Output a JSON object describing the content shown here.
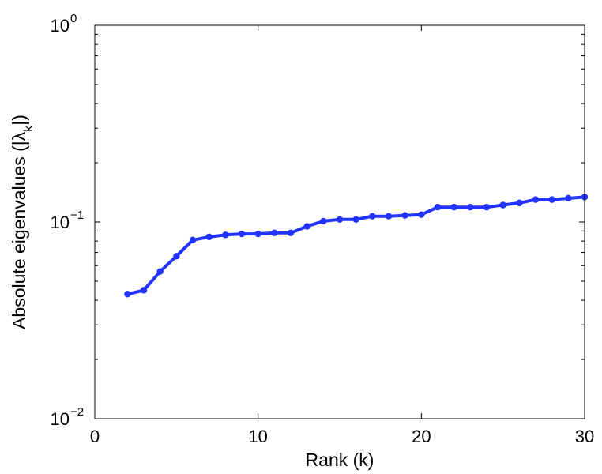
{
  "chart_data": {
    "type": "line",
    "title": "",
    "xlabel": "Rank (k)",
    "ylabel_parts": {
      "main": "Absolute eigenvalues (|λ",
      "sub": "k",
      "end": "|)"
    },
    "xlim": [
      0,
      30
    ],
    "ylim": [
      0.01,
      1
    ],
    "yscale": "log",
    "grid": false,
    "x_ticks": [
      {
        "value": 0,
        "label": "0"
      },
      {
        "value": 10,
        "label": "10"
      },
      {
        "value": 20,
        "label": "20"
      },
      {
        "value": 30,
        "label": "30"
      }
    ],
    "y_ticks": [
      {
        "value": 0.01,
        "base": "10",
        "exp": "−2"
      },
      {
        "value": 0.1,
        "base": "10",
        "exp": "−1"
      },
      {
        "value": 1,
        "base": "10",
        "exp": "0"
      }
    ],
    "series": [
      {
        "color": "#2233ff",
        "marker": "circle",
        "x": [
          2,
          3,
          4,
          5,
          6,
          7,
          8,
          9,
          10,
          11,
          12,
          13,
          14,
          15,
          16,
          17,
          18,
          19,
          20,
          21,
          22,
          23,
          24,
          25,
          26,
          27,
          28,
          29,
          30
        ],
        "y": [
          0.043,
          0.045,
          0.056,
          0.067,
          0.081,
          0.084,
          0.086,
          0.087,
          0.087,
          0.088,
          0.088,
          0.095,
          0.101,
          0.103,
          0.103,
          0.107,
          0.107,
          0.108,
          0.109,
          0.119,
          0.119,
          0.119,
          0.119,
          0.122,
          0.125,
          0.13,
          0.13,
          0.132,
          0.134
        ]
      }
    ]
  }
}
